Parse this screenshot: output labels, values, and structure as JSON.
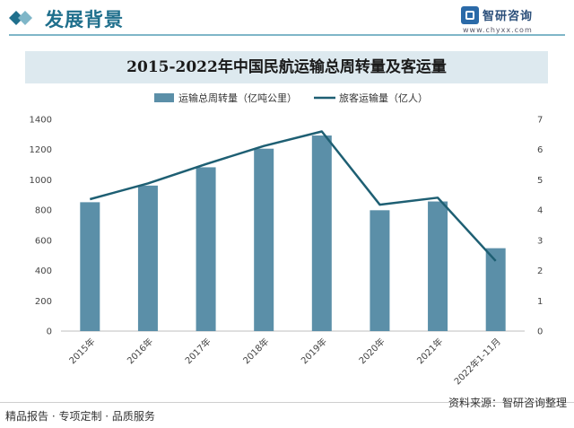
{
  "header": {
    "title": "发展背景",
    "logo_name": "智研咨询",
    "logo_url": "www.chyxx.com"
  },
  "colors": {
    "bar": "#5b8fa8",
    "line": "#1e5f73",
    "title_bar": "#dde9ef"
  },
  "chart_data": {
    "type": "bar",
    "title": "2015-2022年中国民航运输总周转量及客运量",
    "categories": [
      "2015年",
      "2016年",
      "2017年",
      "2018年",
      "2019年",
      "2020年",
      "2021年",
      "2022年1-11月"
    ],
    "series": [
      {
        "name": "运输总周转量（亿吨公里）",
        "type": "bar",
        "axis": "left",
        "values": [
          852,
          962,
          1083,
          1206,
          1293,
          799,
          857,
          548
        ]
      },
      {
        "name": "旅客运输量（亿人）",
        "type": "line",
        "axis": "right",
        "values": [
          4.36,
          4.88,
          5.52,
          6.12,
          6.6,
          4.18,
          4.41,
          2.32
        ]
      }
    ],
    "y_left": {
      "min": 0,
      "max": 1400,
      "ticks": [
        "0",
        "200",
        "400",
        "600",
        "800",
        "1000",
        "1200",
        "1400"
      ]
    },
    "y_right": {
      "min": 0,
      "max": 7,
      "ticks": [
        "0",
        "1",
        "2",
        "3",
        "4",
        "5",
        "6",
        "7"
      ]
    },
    "grid": false,
    "legend": "top"
  },
  "footer": {
    "left": "精品报告 · 专项定制 · 品质服务",
    "right": "资料来源：智研咨询整理"
  }
}
